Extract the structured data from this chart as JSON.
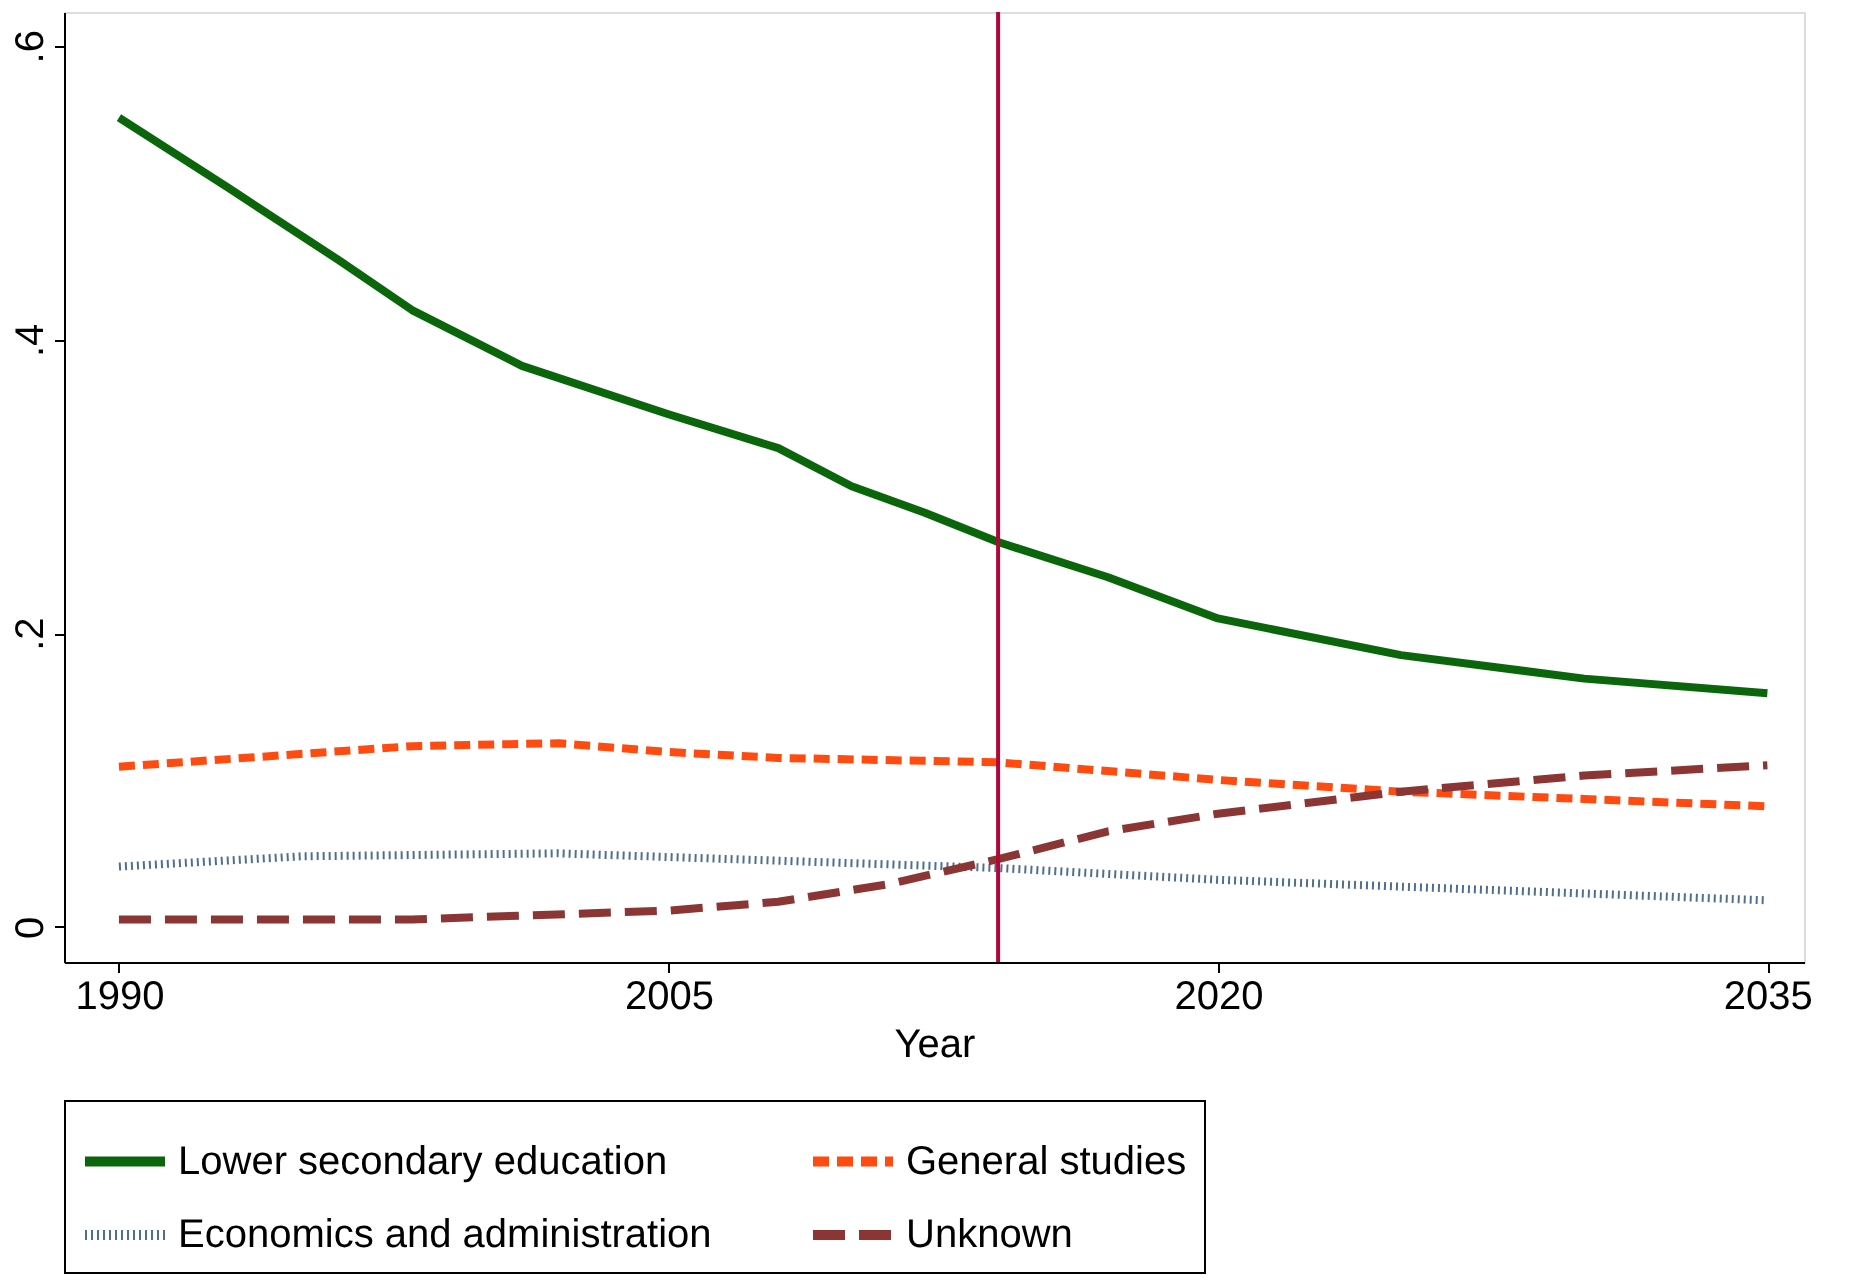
{
  "chart_data": {
    "type": "line",
    "xlabel": "Year",
    "xlim": [
      1988.5,
      2036
    ],
    "xticks": [
      1990,
      2005,
      2020,
      2035
    ],
    "ylim": [
      -0.024,
      0.623
    ],
    "yticks": [
      {
        "value": 0,
        "label": "0"
      },
      {
        "value": 0.2,
        "label": ".2"
      },
      {
        "value": 0.4,
        "label": ".4"
      },
      {
        "value": 0.6,
        "label": ".6"
      }
    ],
    "grid": false,
    "legend": "bottom",
    "marker": "none",
    "ref_lines": [
      {
        "axis": "x",
        "value": 2014,
        "color": "#b0063a"
      }
    ],
    "series": [
      {
        "name": "Lower secondary education",
        "color": "#0b660b",
        "line_style": "solid",
        "x": [
          1990,
          1993,
          1996,
          1998,
          2001,
          2005,
          2008,
          2010,
          2012,
          2014,
          2017,
          2020,
          2025,
          2030,
          2035
        ],
        "values": [
          0.551,
          0.503,
          0.454,
          0.42,
          0.382,
          0.349,
          0.326,
          0.3,
          0.282,
          0.262,
          0.238,
          0.21,
          0.185,
          0.169,
          0.159
        ]
      },
      {
        "name": "General studies",
        "color": "#ff4a10",
        "line_style": "dashed",
        "x": [
          1990,
          1998,
          2002,
          2005,
          2008,
          2014,
          2020,
          2025,
          2030,
          2035
        ],
        "values": [
          0.109,
          0.123,
          0.125,
          0.119,
          0.115,
          0.112,
          0.1,
          0.092,
          0.087,
          0.082
        ]
      },
      {
        "name": "Economics and administration",
        "color": "#4f6f8f",
        "line_style": "dotted",
        "x": [
          1990,
          1995,
          2002,
          2008,
          2014,
          2020,
          2035
        ],
        "values": [
          0.041,
          0.048,
          0.05,
          0.045,
          0.04,
          0.032,
          0.018
        ]
      },
      {
        "name": "Unknown",
        "color": "#8b3535",
        "line_style": "longdash",
        "x": [
          1990,
          1998,
          2005,
          2008,
          2011,
          2014,
          2017,
          2020,
          2025,
          2030,
          2035
        ],
        "values": [
          0.005,
          0.005,
          0.011,
          0.017,
          0.029,
          0.046,
          0.065,
          0.077,
          0.092,
          0.103,
          0.11
        ]
      }
    ]
  }
}
